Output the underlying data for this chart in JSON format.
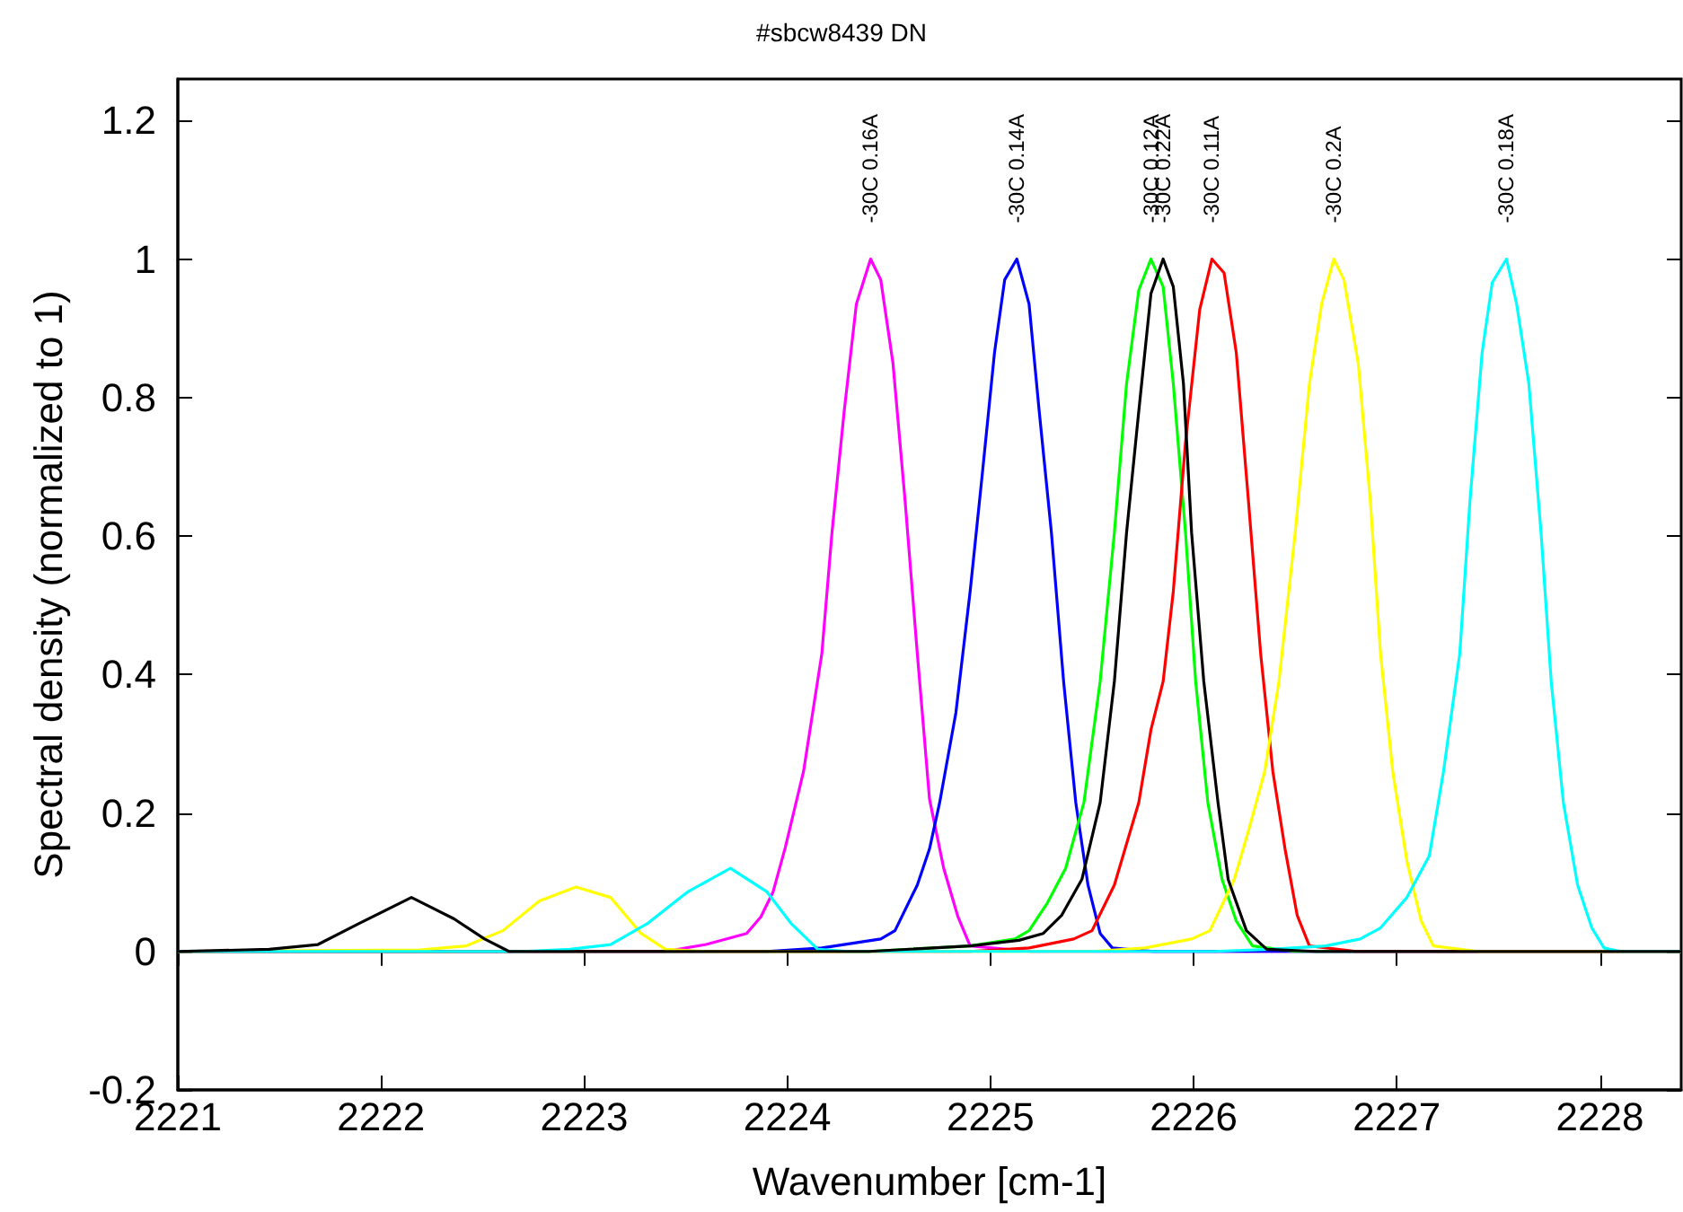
{
  "chart_data": {
    "type": "line",
    "title": "#sbcw8439 DN",
    "xlabel": "Wavenumber [cm-1]",
    "ylabel": "Spectral density (normalized to 1)",
    "xlim": [
      2221,
      2228.4
    ],
    "xticks": [
      2221,
      2222,
      2223,
      2224,
      2225,
      2226,
      2227,
      2228
    ],
    "ylim": [
      -0.2,
      1.26
    ],
    "yticks": [
      -0.2,
      0,
      0.2,
      0.4,
      0.6,
      0.8,
      1,
      1.2
    ],
    "marker": "none",
    "line_style": "solid",
    "series": [
      {
        "color": "#ff00ff",
        "x": [
          2221,
          2223.4,
          2223.6,
          2223.8,
          2223.87,
          2223.93,
          2223.99,
          2224.08,
          2224.17,
          2224.22,
          2224.28,
          2224.34,
          2224.41,
          2224.46,
          2224.52,
          2224.58,
          2224.64,
          2224.7,
          2224.77,
          2224.84,
          2224.9,
          2225.2,
          2228.4
        ],
        "values": [
          0,
          0,
          0.01,
          0.026,
          0.05,
          0.086,
          0.15,
          0.26,
          0.43,
          0.605,
          0.78,
          0.935,
          1,
          0.97,
          0.85,
          0.65,
          0.43,
          0.22,
          0.12,
          0.05,
          0.008,
          0,
          0
        ]
      },
      {
        "color": "#0000ff",
        "x": [
          2221,
          2223.9,
          2224.17,
          2224.46,
          2224.53,
          2224.64,
          2224.7,
          2224.75,
          2224.83,
          2224.9,
          2224.96,
          2225.02,
          2225.07,
          2225.13,
          2225.19,
          2225.24,
          2225.3,
          2225.36,
          2225.42,
          2225.48,
          2225.54,
          2225.6,
          2225.8,
          2228.4
        ],
        "values": [
          0,
          0,
          0.005,
          0.018,
          0.03,
          0.096,
          0.148,
          0.215,
          0.345,
          0.52,
          0.69,
          0.865,
          0.97,
          1,
          0.935,
          0.78,
          0.605,
          0.39,
          0.215,
          0.096,
          0.026,
          0.005,
          0,
          0
        ]
      },
      {
        "color": "#00ff00",
        "x": [
          2221,
          2224.4,
          2224.9,
          2225.12,
          2225.19,
          2225.28,
          2225.37,
          2225.46,
          2225.54,
          2225.61,
          2225.67,
          2225.73,
          2225.79,
          2225.85,
          2225.9,
          2225.96,
          2226.01,
          2226.07,
          2226.14,
          2226.21,
          2226.29,
          2226.5,
          2228.4
        ],
        "values": [
          0,
          0,
          0.008,
          0.018,
          0.03,
          0.07,
          0.12,
          0.215,
          0.39,
          0.605,
          0.82,
          0.955,
          1,
          0.96,
          0.82,
          0.605,
          0.39,
          0.215,
          0.104,
          0.044,
          0.008,
          0,
          0
        ]
      },
      {
        "color": "#ff0000",
        "x": [
          2221,
          2224.9,
          2225.19,
          2225.41,
          2225.5,
          2225.61,
          2225.73,
          2225.79,
          2225.85,
          2225.9,
          2225.96,
          2226.03,
          2226.09,
          2226.15,
          2226.21,
          2226.27,
          2226.33,
          2226.39,
          2226.45,
          2226.51,
          2226.57,
          2226.8,
          2228.4
        ],
        "values": [
          0,
          0,
          0.005,
          0.018,
          0.03,
          0.096,
          0.215,
          0.32,
          0.39,
          0.52,
          0.735,
          0.927,
          1,
          0.98,
          0.865,
          0.65,
          0.43,
          0.26,
          0.148,
          0.052,
          0.008,
          0,
          0
        ]
      },
      {
        "color": "#ffff00",
        "x": [
          2221,
          2222.19,
          2222.42,
          2222.6,
          2222.78,
          2222.96,
          2223.13,
          2223.28,
          2223.4,
          2223.6,
          2225.5,
          2225.76,
          2225.99,
          2226.08,
          2226.2,
          2226.27,
          2226.35,
          2226.42,
          2226.5,
          2226.57,
          2226.63,
          2226.69,
          2226.74,
          2226.81,
          2226.87,
          2226.92,
          2226.98,
          2227.05,
          2227.12,
          2227.18,
          2227.4,
          2228.4
        ],
        "values": [
          0,
          0.002,
          0.008,
          0.03,
          0.073,
          0.093,
          0.078,
          0.026,
          0.003,
          0,
          0,
          0.005,
          0.018,
          0.03,
          0.104,
          0.174,
          0.26,
          0.39,
          0.605,
          0.82,
          0.935,
          1,
          0.97,
          0.85,
          0.65,
          0.43,
          0.26,
          0.13,
          0.044,
          0.008,
          0,
          0
        ]
      },
      {
        "color": "#00ffff",
        "x": [
          2221,
          2222.7,
          2222.93,
          2223.13,
          2223.31,
          2223.51,
          2223.72,
          2223.9,
          2224.02,
          2224.15,
          2224.3,
          2226.1,
          2226.38,
          2226.65,
          2226.82,
          2226.92,
          2227.05,
          2227.16,
          2227.23,
          2227.31,
          2227.36,
          2227.42,
          2227.47,
          2227.54,
          2227.59,
          2227.65,
          2227.71,
          2227.76,
          2227.82,
          2227.89,
          2227.96,
          2228.02,
          2228.1,
          2228.4
        ],
        "values": [
          0,
          0,
          0.003,
          0.01,
          0.04,
          0.086,
          0.12,
          0.086,
          0.04,
          0.003,
          0,
          0,
          0.003,
          0.008,
          0.018,
          0.034,
          0.078,
          0.138,
          0.26,
          0.43,
          0.65,
          0.865,
          0.966,
          1,
          0.935,
          0.82,
          0.605,
          0.39,
          0.215,
          0.096,
          0.034,
          0.005,
          0,
          0
        ]
      },
      {
        "color": "#000000",
        "x": [
          2221,
          2221.45,
          2221.69,
          2221.89,
          2222.15,
          2222.36,
          2222.51,
          2222.63,
          2224.4,
          2224.9,
          2225.14,
          2225.26,
          2225.35,
          2225.45,
          2225.54,
          2225.61,
          2225.67,
          2225.73,
          2225.79,
          2225.85,
          2225.9,
          2225.95,
          2225.99,
          2226.05,
          2226.12,
          2226.17,
          2226.26,
          2226.36,
          2226.6,
          2228.4
        ],
        "values": [
          0,
          0.003,
          0.01,
          0.04,
          0.078,
          0.047,
          0.018,
          0,
          0,
          0.008,
          0.016,
          0.026,
          0.052,
          0.104,
          0.215,
          0.39,
          0.605,
          0.78,
          0.95,
          1,
          0.96,
          0.82,
          0.605,
          0.39,
          0.215,
          0.104,
          0.03,
          0.003,
          0,
          0
        ]
      }
    ],
    "annotations": [
      {
        "text": "-30C 0.16A",
        "x": 2224.41,
        "y": 1
      },
      {
        "text": "-30C 0.14A",
        "x": 2225.13,
        "y": 1
      },
      {
        "text": "-30C 0.12A",
        "x": 2225.79,
        "y": 1
      },
      {
        "text": "-30C 0.22A",
        "x": 2225.85,
        "y": 1
      },
      {
        "text": "-30C 0.11A",
        "x": 2226.09,
        "y": 1
      },
      {
        "text": "-30C 0.2A",
        "x": 2226.69,
        "y": 1
      },
      {
        "text": "-30C 0.18A",
        "x": 2227.54,
        "y": 1
      }
    ]
  }
}
